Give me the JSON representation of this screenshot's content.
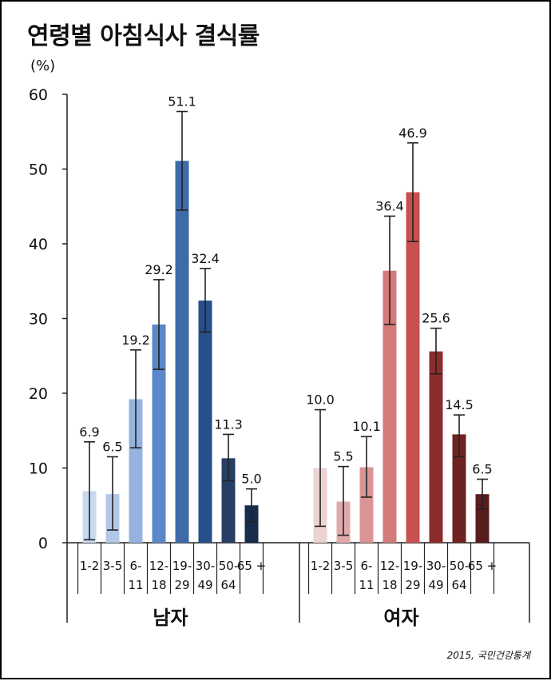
{
  "title": "연령별 아침식사 결식률",
  "unit_label": "(%)",
  "source": "2015, 국민건강통계",
  "chart_data": {
    "type": "bar",
    "ylim": [
      0,
      60
    ],
    "yticks": [
      "0",
      "10",
      "20",
      "30",
      "40",
      "50",
      "60"
    ],
    "grid": false,
    "groups": [
      {
        "name": "남자",
        "categories": [
          [
            "1-2"
          ],
          [
            "3-5"
          ],
          [
            "6-",
            "11"
          ],
          [
            "12-",
            "18"
          ],
          [
            "19-",
            "29"
          ],
          [
            "30-",
            "49"
          ],
          [
            "50-",
            "64"
          ],
          [
            "65 +"
          ]
        ],
        "values": [
          6.9,
          6.5,
          19.2,
          29.2,
          51.1,
          32.4,
          11.3,
          5.0
        ],
        "labels": [
          "6.9",
          "6.5",
          "19.2",
          "29.2",
          "51.1",
          "32.4",
          "11.3",
          "5.0"
        ],
        "error_low": [
          0.4,
          1.7,
          12.7,
          23.2,
          44.5,
          28.2,
          8.3,
          2.8
        ],
        "error_high": [
          13.5,
          11.5,
          25.8,
          35.2,
          57.7,
          36.7,
          14.5,
          7.2
        ],
        "colors": [
          "#c9d9ef",
          "#b3c8e7",
          "#95b3de",
          "#5b88c8",
          "#3e6aa8",
          "#274f8a",
          "#263f63",
          "#182c4c"
        ]
      },
      {
        "name": "여자",
        "categories": [
          [
            "1-2"
          ],
          [
            "3-5"
          ],
          [
            "6-",
            "11"
          ],
          [
            "12-",
            "18"
          ],
          [
            "19-",
            "29"
          ],
          [
            "30-",
            "49"
          ],
          [
            "50-",
            "64"
          ],
          [
            "65 +"
          ]
        ],
        "values": [
          10.0,
          5.5,
          10.1,
          36.4,
          46.9,
          25.6,
          14.5,
          6.5
        ],
        "labels": [
          "10.0",
          "5.5",
          "10.1",
          "36.4",
          "46.9",
          "25.6",
          "14.5",
          "6.5"
        ],
        "error_low": [
          2.2,
          1.0,
          6.1,
          29.2,
          40.3,
          22.6,
          11.5,
          4.5
        ],
        "error_high": [
          17.8,
          10.2,
          14.2,
          43.7,
          53.5,
          28.7,
          17.1,
          8.5
        ],
        "colors": [
          "#ecd2d2",
          "#e0aaaa",
          "#d99595",
          "#d37a7a",
          "#c85050",
          "#8d2c2c",
          "#6e2222",
          "#571c1c"
        ]
      }
    ]
  }
}
